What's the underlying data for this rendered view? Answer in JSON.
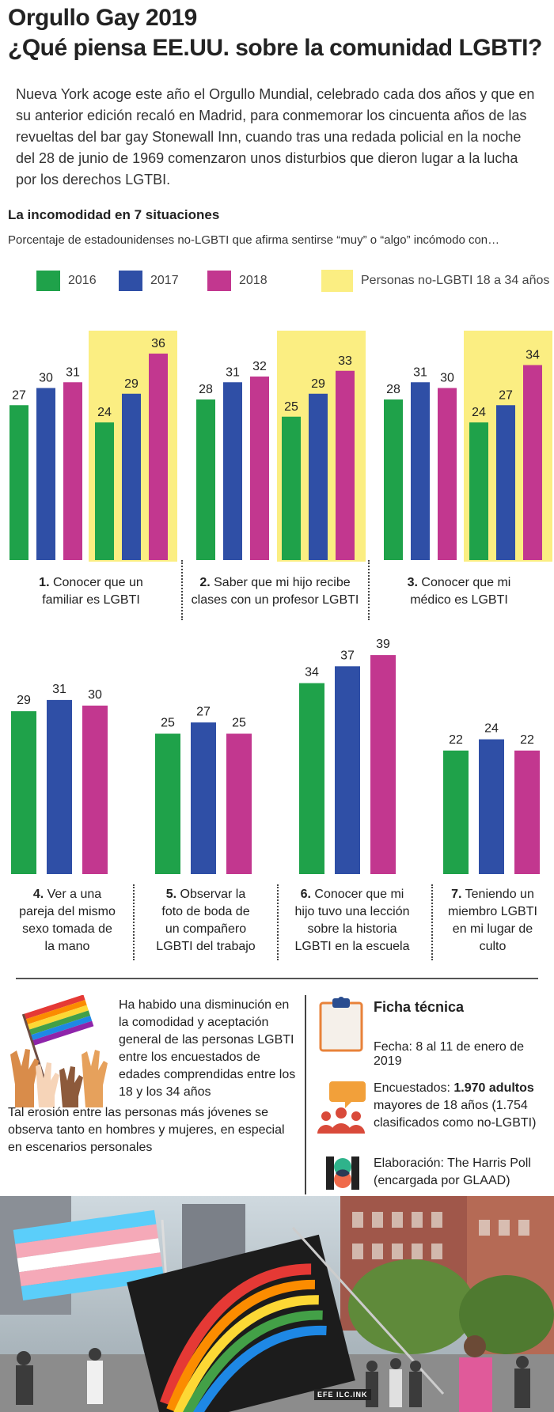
{
  "title_line1": "Orgullo Gay 2019",
  "title_line2": "¿Qué piensa EE.UU. sobre la comunidad LGBTI?",
  "intro": "Nueva York acoge este año el Orgullo Mundial, celebrado cada dos años y que en su anterior edición recaló en Madrid, para conmemorar los cincuenta años de las revueltas del bar gay Stonewall Inn, cuando tras una redada policial en la noche del 28 de junio de 1969 comenzaron unos disturbios que dieron lugar a la lucha por los derechos LGTBI.",
  "section_title": "La incomodidad en 7 situaciones",
  "section_subtitle": "Porcentaje de estadounidenses no-LGBTI que afirma sentirse “muy” o “algo” incómodo con…",
  "colors": {
    "2016": "#1fa24a",
    "2017": "#2f4fa6",
    "2018": "#c2378f",
    "young_bg": "#fbee82"
  },
  "legend": {
    "l2016": "2016",
    "l2017": "2017",
    "l2018": "2018",
    "young": "Personas no-LGBTI 18 a 34 años"
  },
  "chart_data": {
    "type": "bar",
    "series_names": [
      "2016",
      "2017",
      "2018"
    ],
    "groups": [
      {
        "num": "1.",
        "label": "Conocer que un familiar es LGBTI",
        "all": [
          27,
          30,
          31
        ],
        "young_18_34": [
          24,
          29,
          36
        ]
      },
      {
        "num": "2.",
        "label": "Saber que mi hijo recibe clases con un profesor LGBTI",
        "all": [
          28,
          31,
          32
        ],
        "young_18_34": [
          25,
          29,
          33
        ]
      },
      {
        "num": "3.",
        "label": "Conocer que mi médico es LGBTI",
        "all": [
          28,
          31,
          30
        ],
        "young_18_34": [
          24,
          27,
          34
        ]
      },
      {
        "num": "4.",
        "label": "Ver a una pareja del mismo sexo tomada de la mano",
        "all": [
          29,
          31,
          30
        ]
      },
      {
        "num": "5.",
        "label": "Observar la foto de boda de un compañero LGBTI del trabajo",
        "all": [
          25,
          27,
          25
        ]
      },
      {
        "num": "6.",
        "label": "Conocer que mi hijo tuvo una lección sobre la historia LGBTI en la escuela",
        "all": [
          34,
          37,
          39
        ]
      },
      {
        "num": "7.",
        "label": "Teniendo un miembro LGBTI en mi lugar de culto",
        "all": [
          22,
          24,
          22
        ]
      }
    ]
  },
  "captions": {
    "c1_num": "1.",
    "c1_l1": " Conocer que un",
    "c1_l2": "familiar es LGBTI",
    "c2_num": "2.",
    "c2_l1": " Saber que mi hijo recibe",
    "c2_l2": "clases con un profesor LGBTI",
    "c3_num": "3.",
    "c3_l1": " Conocer que mi",
    "c3_l2": "médico es LGBTI",
    "c4_num": "4.",
    "c4_l1": " Ver a una",
    "c4_l2": "pareja del mismo",
    "c4_l3": "sexo tomada de",
    "c4_l4": "la mano",
    "c5_num": "5.",
    "c5_l1": " Observar la",
    "c5_l2": "foto de boda de",
    "c5_l3": "un compañero",
    "c5_l4": "LGBTI del trabajo",
    "c6_num": "6.",
    "c6_l1": " Conocer que mi",
    "c6_l2": "hijo tuvo una lección",
    "c6_l3": "sobre la historia",
    "c6_l4": "LGBTI en la escuela",
    "c7_num": "7.",
    "c7_l1": " Teniendo un",
    "c7_l2": "miembro LGBTI",
    "c7_l3": "en mi lugar de",
    "c7_l4": "culto"
  },
  "note1": "Ha habido una disminución en la comodidad y aceptación general de las personas LGBTI entre los encuestados de edades comprendidas entre los 18 y los 34 años",
  "note2": "Tal erosión entre las personas más jóvenes se observa tanto en hombres y mujeres, en especial en escenarios personales",
  "ficha": {
    "title": "Ficha técnica",
    "fecha": "Fecha: 8 al 11 de enero de 2019",
    "encu_pre": "Encuestados: ",
    "encu_bold": "1.970 adultos",
    "encu_post": " mayores de 18 años (1.754 clasificados como no-LGBTI)",
    "elab": "Elaboración: The Harris Poll (encargada por GLAAD)"
  },
  "credit": "EFE ILC.INK"
}
